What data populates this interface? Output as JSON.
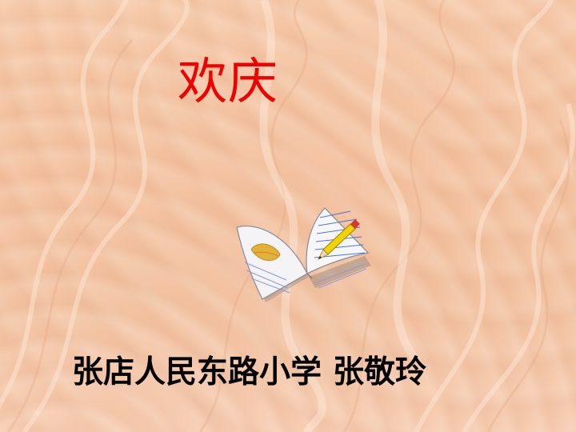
{
  "slide": {
    "title": "欢庆",
    "school": "张店人民东路小学",
    "teacher": "张敬玲",
    "book_icon": "open-book-with-pencil-icon",
    "colors": {
      "background": "#f4c2a0",
      "title": "#f00000",
      "text": "#000000"
    }
  }
}
